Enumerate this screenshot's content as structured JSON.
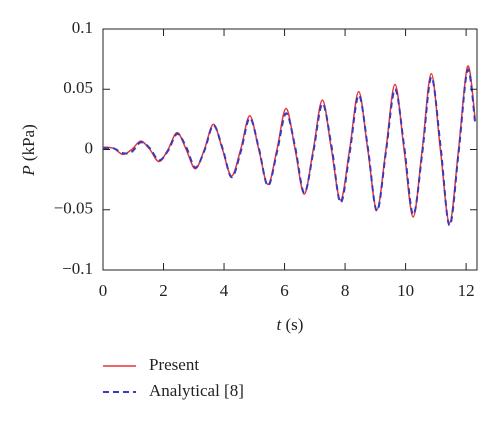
{
  "chart_data": {
    "type": "line",
    "xlabel_var": "t",
    "xlabel_unit": "(s)",
    "ylabel_var": "P",
    "ylabel_unit": "(kPa)",
    "x": [
      0,
      0.35,
      0.65,
      0.95,
      1.25,
      1.55,
      1.85,
      2.15,
      2.45,
      2.75,
      3.05,
      3.35,
      3.65,
      3.95,
      4.25,
      4.55,
      4.85,
      5.15,
      5.45,
      5.75,
      6.05,
      6.35,
      6.65,
      6.95,
      7.25,
      7.55,
      7.85,
      8.15,
      8.45,
      8.75,
      9.05,
      9.35,
      9.65,
      9.95,
      10.25,
      10.55,
      10.85,
      11.15,
      11.45,
      11.75,
      12.05,
      12.3
    ],
    "series": [
      {
        "name": "Present",
        "color": "#e8343a",
        "dash": false,
        "values": [
          0.002,
          0.001,
          -0.004,
          0,
          0.007,
          0,
          -0.01,
          0,
          0.014,
          0,
          -0.016,
          0,
          0.021,
          0,
          -0.022,
          0,
          0.028,
          0,
          -0.029,
          0,
          0.034,
          0,
          -0.037,
          0,
          0.041,
          0,
          -0.042,
          0,
          0.048,
          0,
          -0.05,
          0,
          0.054,
          0,
          -0.056,
          0,
          0.063,
          0,
          -0.061,
          0,
          0.069,
          0.025
        ]
      },
      {
        "name": "Analytical [8]",
        "color": "#3a3ab8",
        "dash": true,
        "values": [
          0.001,
          0.001,
          -0.003,
          -0.002,
          0.006,
          0.001,
          -0.009,
          -0.001,
          0.013,
          0.002,
          -0.015,
          -0.001,
          0.02,
          0.001,
          -0.023,
          -0.002,
          0.026,
          0.001,
          -0.03,
          -0.002,
          0.03,
          0.002,
          -0.036,
          -0.002,
          0.038,
          0.003,
          -0.044,
          -0.003,
          0.045,
          0.002,
          -0.051,
          -0.002,
          0.05,
          0.003,
          -0.054,
          -0.003,
          0.06,
          0.004,
          -0.063,
          -0.003,
          0.066,
          0.022
        ]
      }
    ],
    "xlim": [
      0,
      12.36
    ],
    "xticks": [
      0,
      2,
      4,
      6,
      8,
      10,
      12
    ],
    "ylim": [
      -0.1,
      0.1
    ],
    "yticks": [
      {
        "value": -0.1,
        "label": "−0.1"
      },
      {
        "value": -0.05,
        "label": "−0.05"
      },
      0,
      0.05,
      0.1
    ],
    "grid": false,
    "legend": "below"
  }
}
